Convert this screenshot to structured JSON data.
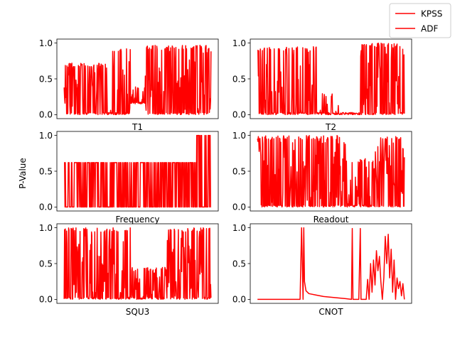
{
  "figure": {
    "shared_ylabel": "P-Value",
    "legend": {
      "placement": "top-right",
      "entries": [
        {
          "label": "KPSS",
          "color": "#ff0000"
        },
        {
          "label": "ADF",
          "color": "#ff0000"
        }
      ]
    }
  },
  "chart_data": [
    {
      "type": "line",
      "xlabel": "T1",
      "ylim": [
        0,
        1
      ],
      "yticks": [
        0.0,
        0.5,
        1.0
      ],
      "ytick_labels": [
        "0.0",
        "0.5",
        "1.0"
      ],
      "x_ticks": "hidden",
      "grid": false,
      "pattern": {
        "segments": [
          {
            "from": 0.0,
            "to": 0.3,
            "low": 0.0,
            "high": 0.72,
            "density": 0.9
          },
          {
            "from": 0.3,
            "to": 0.45,
            "low": 0.0,
            "high": 0.92,
            "density": 0.6
          },
          {
            "from": 0.45,
            "to": 0.55,
            "low": 0.15,
            "high": 0.4,
            "density": 0.5
          },
          {
            "from": 0.55,
            "to": 1.0,
            "low": 0.0,
            "high": 0.97,
            "density": 1.0
          }
        ]
      }
    },
    {
      "type": "line",
      "xlabel": "T2",
      "ylim": [
        0,
        1
      ],
      "yticks": [
        0.0,
        0.5,
        1.0
      ],
      "ytick_labels": [
        "0.0",
        "0.5",
        "1.0"
      ],
      "x_ticks": "hidden",
      "grid": false,
      "pattern": {
        "segments": [
          {
            "from": 0.0,
            "to": 0.4,
            "low": 0.0,
            "high": 0.95,
            "density": 0.7
          },
          {
            "from": 0.4,
            "to": 0.55,
            "low": 0.0,
            "high": 0.3,
            "density": 0.4
          },
          {
            "from": 0.55,
            "to": 0.7,
            "low": 0.0,
            "high": 0.02,
            "density": 0.2
          },
          {
            "from": 0.7,
            "to": 1.0,
            "low": 0.0,
            "high": 1.0,
            "density": 1.0
          }
        ]
      }
    },
    {
      "type": "line",
      "xlabel": "Frequency",
      "ylim": [
        0,
        1
      ],
      "yticks": [
        0.0,
        0.5,
        1.0
      ],
      "ytick_labels": [
        "0.0",
        "0.5",
        "1.0"
      ],
      "x_ticks": "hidden",
      "grid": false,
      "pattern": {
        "segments": [
          {
            "from": 0.0,
            "to": 0.9,
            "low": 0.0,
            "high": 0.62,
            "density": 1.0,
            "binary": true
          },
          {
            "from": 0.9,
            "to": 1.0,
            "low": 0.0,
            "high": 1.0,
            "density": 1.0,
            "binary": true
          }
        ]
      }
    },
    {
      "type": "line",
      "xlabel": "Readout",
      "ylim": [
        0,
        1
      ],
      "yticks": [
        0.0,
        0.5,
        1.0
      ],
      "ytick_labels": [
        "0.0",
        "0.5",
        "1.0"
      ],
      "x_ticks": "hidden",
      "grid": false,
      "pattern": {
        "segments": [
          {
            "from": 0.0,
            "to": 0.6,
            "low": 0.0,
            "high": 1.0,
            "density": 0.9
          },
          {
            "from": 0.6,
            "to": 0.8,
            "low": 0.0,
            "high": 0.68,
            "density": 0.7
          },
          {
            "from": 0.8,
            "to": 1.0,
            "low": 0.0,
            "high": 1.0,
            "density": 1.0
          }
        ]
      }
    },
    {
      "type": "line",
      "xlabel": "SQU3",
      "ylim": [
        0,
        1
      ],
      "yticks": [
        0.0,
        0.5,
        1.0
      ],
      "ytick_labels": [
        "0.0",
        "0.5",
        "1.0"
      ],
      "x_ticks": "hidden",
      "grid": false,
      "pattern": {
        "segments": [
          {
            "from": 0.0,
            "to": 0.45,
            "low": 0.0,
            "high": 1.0,
            "density": 0.9
          },
          {
            "from": 0.45,
            "to": 0.7,
            "low": 0.0,
            "high": 0.45,
            "density": 0.8
          },
          {
            "from": 0.7,
            "to": 1.0,
            "low": 0.0,
            "high": 1.0,
            "density": 1.0
          }
        ]
      }
    },
    {
      "type": "line",
      "xlabel": "CNOT",
      "ylim": [
        0,
        1
      ],
      "yticks": [
        0.0,
        0.5,
        1.0
      ],
      "ytick_labels": [
        "0.0",
        "0.5",
        "1.0"
      ],
      "x_ticks": "hidden",
      "grid": false,
      "points": [
        [
          0.0,
          0.0
        ],
        [
          0.28,
          0.0
        ],
        [
          0.29,
          0.0
        ],
        [
          0.3,
          1.0
        ],
        [
          0.31,
          0.0
        ],
        [
          0.315,
          1.0
        ],
        [
          0.32,
          0.25
        ],
        [
          0.33,
          0.12
        ],
        [
          0.35,
          0.08
        ],
        [
          0.4,
          0.06
        ],
        [
          0.45,
          0.04
        ],
        [
          0.5,
          0.03
        ],
        [
          0.55,
          0.02
        ],
        [
          0.6,
          0.01
        ],
        [
          0.64,
          0.0
        ],
        [
          0.645,
          0.99
        ],
        [
          0.65,
          0.0
        ],
        [
          0.69,
          0.0
        ],
        [
          0.7,
          0.99
        ],
        [
          0.705,
          0.0
        ],
        [
          0.74,
          0.0
        ],
        [
          0.75,
          0.28
        ],
        [
          0.76,
          0.0
        ],
        [
          0.77,
          0.5
        ],
        [
          0.78,
          0.1
        ],
        [
          0.79,
          0.55
        ],
        [
          0.8,
          0.2
        ],
        [
          0.81,
          0.68
        ],
        [
          0.82,
          0.4
        ],
        [
          0.83,
          0.6
        ],
        [
          0.84,
          0.25
        ],
        [
          0.85,
          0.0
        ],
        [
          0.86,
          0.3
        ],
        [
          0.87,
          0.88
        ],
        [
          0.88,
          0.5
        ],
        [
          0.89,
          0.91
        ],
        [
          0.9,
          0.3
        ],
        [
          0.91,
          0.7
        ],
        [
          0.92,
          0.1
        ],
        [
          0.93,
          0.55
        ],
        [
          0.94,
          0.0
        ],
        [
          0.95,
          0.3
        ],
        [
          0.96,
          0.15
        ],
        [
          0.97,
          0.25
        ],
        [
          0.98,
          0.05
        ],
        [
          0.99,
          0.22
        ],
        [
          1.0,
          0.0
        ]
      ]
    }
  ]
}
